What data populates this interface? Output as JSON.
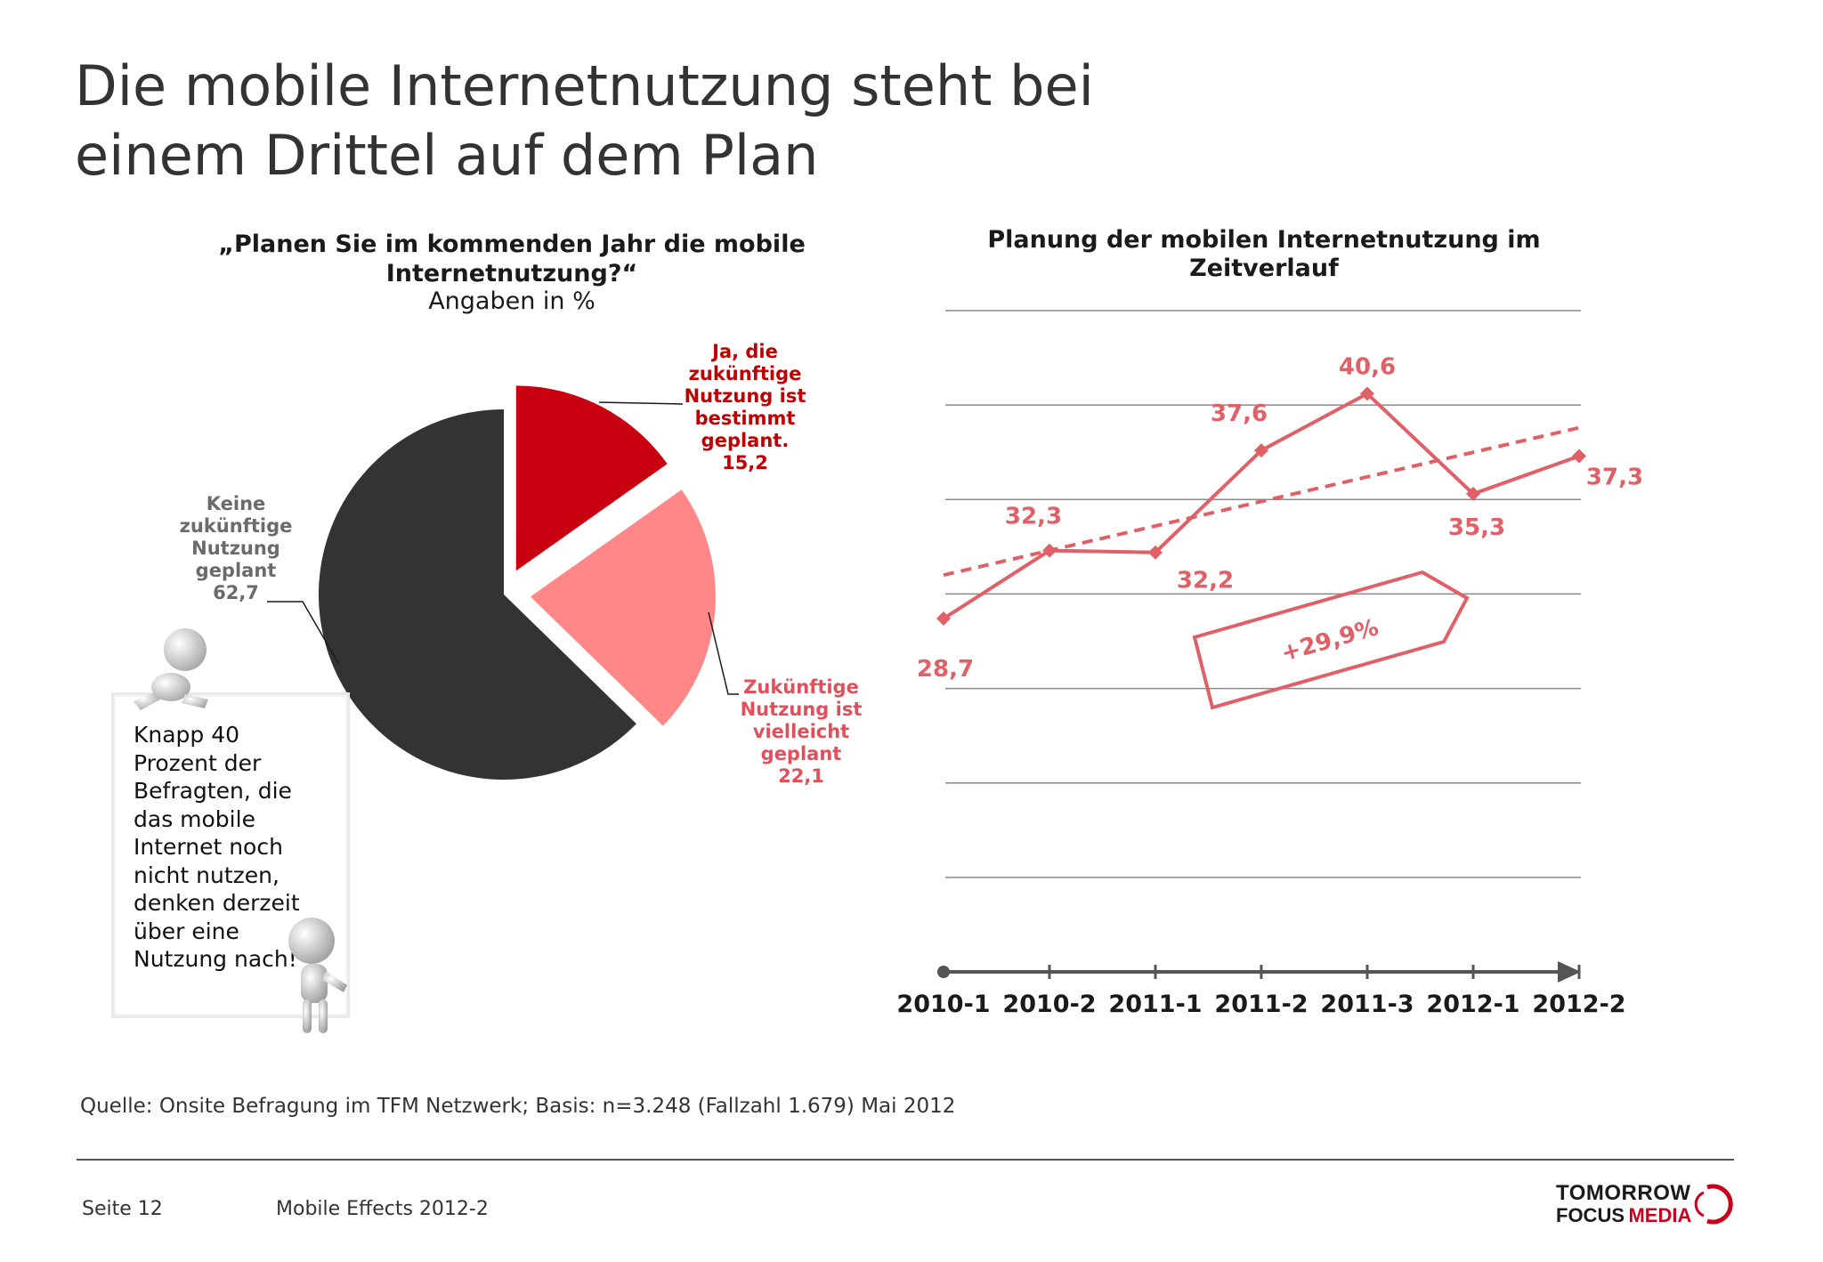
{
  "title": {
    "line1": "Die mobile Internetnutzung steht bei",
    "line2": "einem Drittel auf dem Plan"
  },
  "pie": {
    "title": "„Planen Sie im kommenden Jahr die mobile Internetnutzung?“",
    "subtitle": "Angaben in %",
    "slices": [
      {
        "text": "Ja, die zukünftige Nutzung ist bestimmt geplant.",
        "value": "15,2",
        "color": "#c8000f",
        "label_color": "#c00000"
      },
      {
        "text": "Zukünftige Nutzung ist vielleicht geplant",
        "value": "22,1",
        "color": "#ff8787",
        "label_color": "#e0505a"
      },
      {
        "text": "Keine zukünftige Nutzung geplant",
        "value": "62,7",
        "color": "#333333",
        "label_color": "#6b6b6b"
      }
    ]
  },
  "callout": {
    "text": "Knapp 40 Prozent der Befragten, die das mobile Internet noch nicht nutzen, denken derzeit über eine Nutzung nach!"
  },
  "chart_data": {
    "type": "line",
    "title": "Planung der mobilen Internetnutzung im Zeitverlauf",
    "categories": [
      "2010-1",
      "2010-2",
      "2011-1",
      "2011-2",
      "2011-3",
      "2012-1",
      "2012-2"
    ],
    "values": [
      28.7,
      32.3,
      32.2,
      37.6,
      40.6,
      35.3,
      37.3
    ],
    "value_labels": [
      "28,7",
      "32,3",
      "32,2",
      "37,6",
      "40,6",
      "35,3",
      "37,3"
    ],
    "trend": {
      "start": 31.0,
      "end": 38.8,
      "style": "dashed"
    },
    "annotation": "+29,9%",
    "ylim": [
      10,
      45
    ],
    "grid": true,
    "series_color": "#e06068"
  },
  "source": "Quelle: Onsite Befragung im TFM Netzwerk; Basis: n=3.248 (Fallzahl 1.679) Mai 2012",
  "footer": {
    "page": "Seite 12",
    "doc": "Mobile Effects 2012-2",
    "brand_line1": "TOMORROW",
    "brand_line2a": "FOCUS",
    "brand_line2b": "MEDIA"
  }
}
